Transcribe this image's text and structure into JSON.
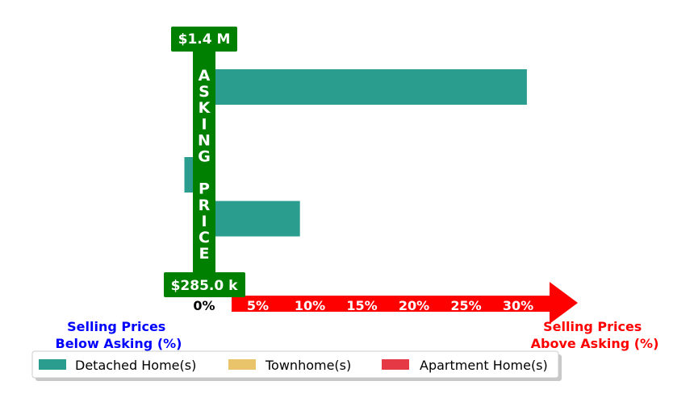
{
  "chart_data": {
    "type": "bar",
    "orientation": "horizontal",
    "x_ticks": [
      "0%",
      "5%",
      "10%",
      "15%",
      "20%",
      "25%",
      "30%"
    ],
    "xlim": [
      -2,
      35
    ],
    "rows": 5,
    "series": [
      {
        "name": "Detached Home(s)",
        "color": "#2a9d8f",
        "points": [
          {
            "row": 0,
            "value": 31.0
          },
          {
            "row": 2,
            "value": -1.9
          },
          {
            "row": 3,
            "value": 9.2
          }
        ]
      },
      {
        "name": "Townhome(s)",
        "color": "#e9c46a",
        "points": [
          {
            "row": 1,
            "value": 0.5
          }
        ]
      },
      {
        "name": "Apartment Home(s)",
        "color": "#e63946",
        "points": [
          {
            "row": 4,
            "value": -0.7
          }
        ]
      }
    ],
    "price_top": "$1.4 M",
    "price_bottom": "$285.0 k",
    "axis_label": "ASKING PRICE",
    "below_label": [
      "Selling Prices",
      "Below Asking (%)"
    ],
    "above_label": [
      "Selling Prices",
      "Above Asking (%)"
    ],
    "colors": {
      "axis_green": "#008000",
      "arrow_red": "#ff0000",
      "below_label": "#0000ff",
      "above_label": "#ff0000"
    },
    "legend": {
      "placement": "below",
      "entries": [
        "Detached Home(s)",
        "Townhome(s)",
        "Apartment Home(s)"
      ]
    }
  }
}
